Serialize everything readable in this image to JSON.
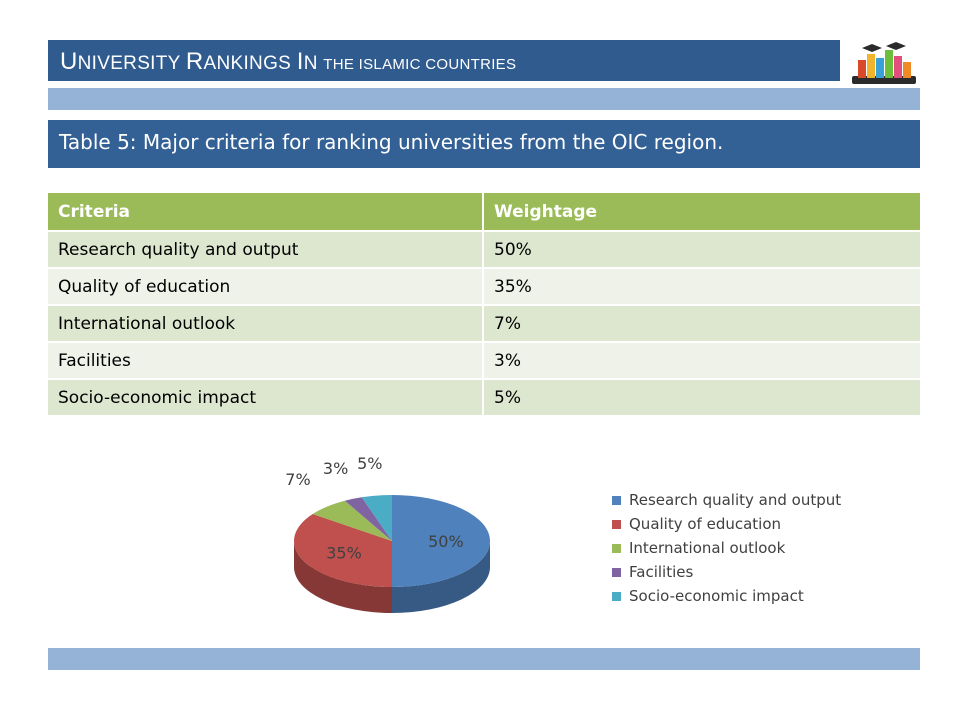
{
  "header": {
    "title_parts": [
      {
        "text": "U",
        "size": "big"
      },
      {
        "text": "NIVERSITY ",
        "size": "mid"
      },
      {
        "text": "R",
        "size": "big"
      },
      {
        "text": "ANKINGS ",
        "size": "mid"
      },
      {
        "text": "I",
        "size": "big"
      },
      {
        "text": "N ",
        "size": "mid"
      },
      {
        "text": "THE ISLAMIC COUNTRIES",
        "size": "small"
      }
    ],
    "logo_icon": "bar-chart-graduation-caps-icon"
  },
  "subtitle": "Table 5: Major criteria for ranking universities from the OIC region.",
  "table": {
    "headers": [
      "Criteria",
      "Weightage"
    ],
    "rows": [
      [
        "Research quality and output",
        "50%"
      ],
      [
        "Quality of education",
        "35%"
      ],
      [
        "International outlook",
        "7%"
      ],
      [
        "Facilities",
        "3%"
      ],
      [
        "Socio-economic impact",
        "5%"
      ]
    ]
  },
  "chart_data": {
    "type": "pie",
    "categories": [
      "Research quality and output",
      "Quality of education",
      "International outlook",
      "Facilities",
      "Socio-economic impact"
    ],
    "values": [
      50,
      35,
      7,
      3,
      5
    ],
    "labels": [
      "50%",
      "35%",
      "7%",
      "3%",
      "5%"
    ],
    "colors": [
      "#4f81bd",
      "#c0504d",
      "#9bbb59",
      "#8064a2",
      "#4bacc6"
    ],
    "legend_position": "right",
    "style": "3d"
  }
}
